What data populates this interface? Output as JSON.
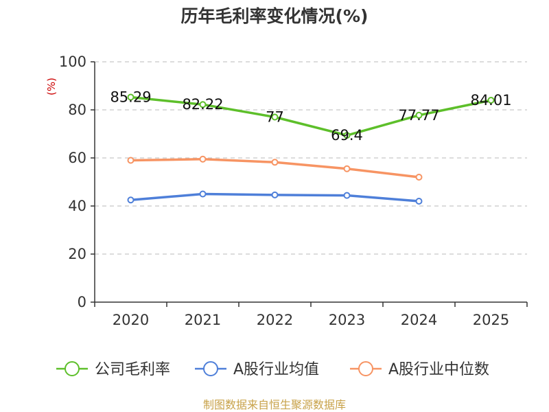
{
  "chart_data": {
    "type": "line",
    "title": "历年毛利率变化情况(%)",
    "ylabel": "(%)",
    "xlabel": "",
    "categories": [
      "2020",
      "2021",
      "2022",
      "2023",
      "2024",
      "2025"
    ],
    "ylim": [
      0,
      100
    ],
    "yticks": [
      0,
      20,
      40,
      60,
      80,
      100
    ],
    "grid": true,
    "legend_position": "bottom",
    "series": [
      {
        "name": "公司毛利率",
        "color": "#5dbf2a",
        "values": [
          85.29,
          82.22,
          77,
          69.4,
          77.77,
          84.01
        ],
        "labels": [
          "85.29",
          "82.22",
          "77",
          "69.4",
          "77.77",
          "84.01"
        ]
      },
      {
        "name": "A股行业均值",
        "color": "#4e7fd9",
        "values": [
          42.5,
          45.0,
          44.6,
          44.4,
          42.0,
          null
        ]
      },
      {
        "name": "A股行业中位数",
        "color": "#f79463",
        "values": [
          59.0,
          59.5,
          58.2,
          55.5,
          52.0,
          null
        ]
      }
    ],
    "source": "制图数据来自恒生聚源数据库"
  }
}
